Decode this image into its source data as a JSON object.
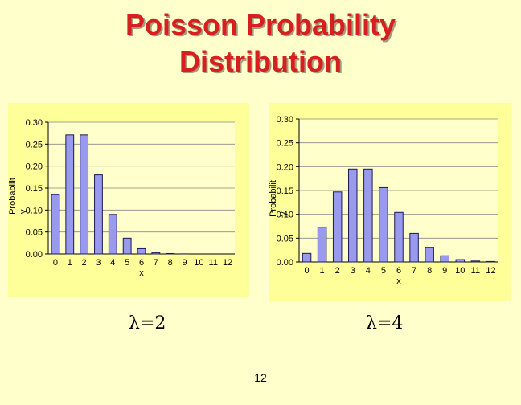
{
  "title_line1": "Poisson Probability",
  "title_line2": "Distribution",
  "page_number": "12",
  "colors": {
    "title": "#d62020",
    "background": "#ffffcc",
    "panel": "#ffff99",
    "bar_fill": "#9999ee",
    "bar_edge": "#1a1a55"
  },
  "chart_data": [
    {
      "type": "bar",
      "caption": "λ=2",
      "xlabel": "x",
      "ylabel_line1": "Probabilit",
      "ylabel_line2": "y",
      "categories": [
        "0",
        "1",
        "2",
        "3",
        "4",
        "5",
        "6",
        "7",
        "8",
        "9",
        "10",
        "11",
        "12"
      ],
      "values": [
        0.135,
        0.271,
        0.271,
        0.18,
        0.09,
        0.036,
        0.012,
        0.003,
        0.001,
        0.0002,
        0.0,
        0.0,
        0.0
      ],
      "ylim": [
        0,
        0.3
      ],
      "yticks": [
        "0.00",
        "0.05",
        "0.10",
        "0.15",
        "0.20",
        "0.25",
        "0.30"
      ],
      "grid": true,
      "legend": false
    },
    {
      "type": "bar",
      "caption": "λ=4",
      "xlabel": "x",
      "ylabel_line1": "Probabilit",
      "ylabel_line2": "y",
      "categories": [
        "0",
        "1",
        "2",
        "3",
        "4",
        "5",
        "6",
        "7",
        "8",
        "9",
        "10",
        "11",
        "12"
      ],
      "values": [
        0.018,
        0.073,
        0.147,
        0.195,
        0.195,
        0.156,
        0.104,
        0.06,
        0.03,
        0.013,
        0.005,
        0.002,
        0.001
      ],
      "ylim": [
        0,
        0.3
      ],
      "yticks": [
        "0.00",
        "0.05",
        "0.10",
        "0.15",
        "0.20",
        "0.25",
        "0.30"
      ],
      "grid": true,
      "legend": false
    }
  ]
}
